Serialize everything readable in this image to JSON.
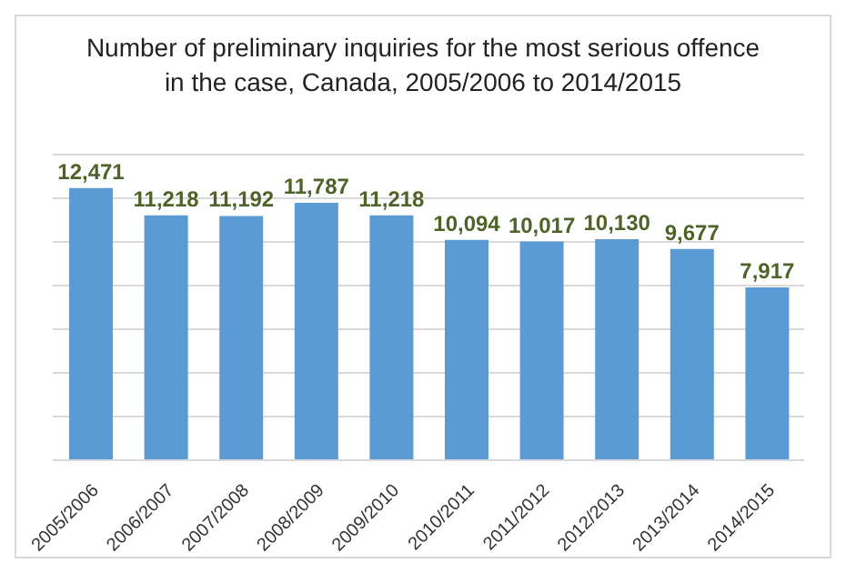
{
  "chart_data": {
    "type": "bar",
    "title": "Number of preliminary inquiries for the most serious offence\nin the case, Canada, 2005/2006 to 2014/2015",
    "categories": [
      "2005/2006",
      "2006/2007",
      "2007/2008",
      "2008/2009",
      "2009/2010",
      "2010/2011",
      "2011/2012",
      "2012/2013",
      "2013/2014",
      "2014/2015"
    ],
    "values": [
      12471,
      11218,
      11192,
      11787,
      11218,
      10094,
      10017,
      10130,
      9677,
      7917
    ],
    "color": "#5b9bd5",
    "ylim": [
      0,
      14000
    ],
    "yticks": [
      {
        "value": 0,
        "label": null
      },
      {
        "value": 2000,
        "label": null
      },
      {
        "value": 4000,
        "label": null
      },
      {
        "value": 6000,
        "label": null
      },
      {
        "value": 8000,
        "label": null
      },
      {
        "value": 10000,
        "label": null
      },
      {
        "value": 12000,
        "label": null
      },
      {
        "value": 14000,
        "label": null
      }
    ],
    "value_labels": [
      "12,471",
      "11,218",
      "11,192",
      "11,787",
      "11,218",
      "10,094",
      "10,017",
      "10,130",
      "9,677",
      "7,917"
    ],
    "grid": "y",
    "legend": false
  }
}
